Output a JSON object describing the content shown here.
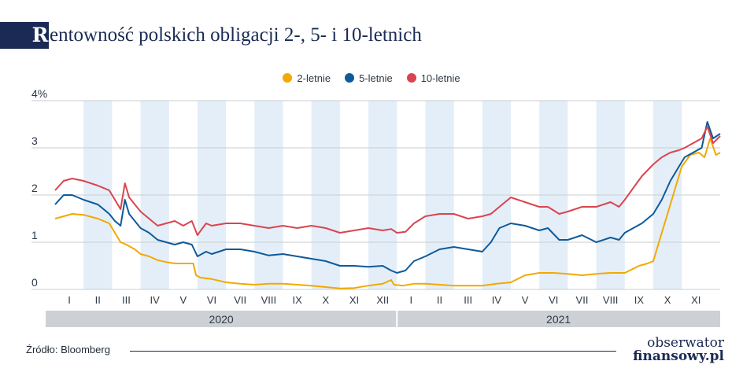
{
  "title": {
    "first_letter": "R",
    "rest": "entowność polskich obligacji 2-, 5- i 10-letnich"
  },
  "legend": [
    {
      "label": "2-letnie",
      "color": "#f2a900"
    },
    {
      "label": "5-letnie",
      "color": "#0e5a9a"
    },
    {
      "label": "10-letnie",
      "color": "#d9454f"
    }
  ],
  "footer": {
    "source": "Źródło: Bloomberg",
    "logo_top": "obserwator",
    "logo_bottom": "finansowy.pl"
  },
  "chart_data": {
    "type": "line",
    "title": "Rentowność polskich obligacji 2-, 5- i 10-letnich",
    "xlabel": "",
    "ylabel": "",
    "ylim": [
      0,
      4
    ],
    "y_ticks": [
      "0",
      "1",
      "2",
      "3",
      "4%"
    ],
    "grid": true,
    "legend_position": "top-center",
    "x_range": [
      0,
      23.35
    ],
    "x_unit": "months since start of 2020",
    "month_labels": [
      "I",
      "II",
      "III",
      "IV",
      "V",
      "VI",
      "VII",
      "VIII",
      "IX",
      "X",
      "XI",
      "XII",
      "I",
      "II",
      "III",
      "IV",
      "V",
      "VI",
      "VII",
      "VIII",
      "IX",
      "X",
      "XI"
    ],
    "years": [
      "2020",
      "2021"
    ],
    "series": [
      {
        "name": "2-letnie",
        "color": "#f2a900",
        "x": [
          0,
          0.3,
          0.6,
          1.0,
          1.5,
          1.9,
          2.05,
          2.15,
          2.3,
          2.5,
          2.8,
          3.0,
          3.3,
          3.6,
          3.9,
          4.2,
          4.5,
          4.85,
          4.95,
          5.1,
          5.5,
          6.0,
          6.5,
          7.0,
          7.5,
          8.0,
          8.5,
          9.0,
          9.5,
          10.0,
          10.5,
          11.0,
          11.5,
          11.8,
          11.9,
          12.2,
          12.6,
          13.0,
          13.5,
          14.0,
          14.5,
          15.0,
          15.5,
          16.0,
          16.5,
          17.0,
          17.5,
          18.0,
          18.5,
          19.0,
          19.5,
          20.0,
          20.5,
          20.8,
          21.0,
          21.2,
          21.5,
          21.8,
          22.0,
          22.3,
          22.6,
          22.8,
          23.0,
          23.2,
          23.35
        ],
        "y": [
          1.5,
          1.55,
          1.6,
          1.58,
          1.5,
          1.4,
          1.25,
          1.15,
          1.0,
          0.95,
          0.85,
          0.75,
          0.7,
          0.62,
          0.58,
          0.55,
          0.55,
          0.55,
          0.3,
          0.25,
          0.22,
          0.15,
          0.12,
          0.1,
          0.12,
          0.12,
          0.1,
          0.08,
          0.05,
          0.02,
          0.03,
          0.08,
          0.12,
          0.2,
          0.1,
          0.08,
          0.12,
          0.12,
          0.1,
          0.08,
          0.08,
          0.08,
          0.12,
          0.15,
          0.3,
          0.35,
          0.35,
          0.33,
          0.3,
          0.33,
          0.35,
          0.35,
          0.5,
          0.55,
          0.6,
          1.0,
          1.6,
          2.2,
          2.6,
          2.85,
          2.9,
          2.8,
          3.2,
          2.85,
          2.9
        ]
      },
      {
        "name": "5-letnie",
        "color": "#0e5a9a",
        "x": [
          0,
          0.3,
          0.6,
          1.0,
          1.5,
          1.9,
          2.1,
          2.3,
          2.45,
          2.6,
          2.8,
          3.0,
          3.3,
          3.6,
          3.9,
          4.2,
          4.5,
          4.8,
          5.0,
          5.3,
          5.5,
          6.0,
          6.5,
          7.0,
          7.5,
          8.0,
          8.5,
          9.0,
          9.5,
          10.0,
          10.5,
          11.0,
          11.5,
          11.8,
          12.0,
          12.3,
          12.6,
          13.0,
          13.5,
          14.0,
          14.5,
          15.0,
          15.3,
          15.6,
          16.0,
          16.5,
          17.0,
          17.3,
          17.7,
          18.0,
          18.5,
          19.0,
          19.5,
          19.8,
          20.0,
          20.3,
          20.6,
          21.0,
          21.3,
          21.6,
          21.9,
          22.1,
          22.4,
          22.7,
          22.9,
          23.1,
          23.35
        ],
        "y": [
          1.8,
          2.0,
          2.0,
          1.9,
          1.8,
          1.6,
          1.45,
          1.35,
          1.9,
          1.6,
          1.45,
          1.3,
          1.2,
          1.05,
          1.0,
          0.95,
          1.0,
          0.95,
          0.7,
          0.8,
          0.75,
          0.85,
          0.85,
          0.8,
          0.72,
          0.75,
          0.7,
          0.65,
          0.6,
          0.5,
          0.5,
          0.48,
          0.5,
          0.4,
          0.35,
          0.4,
          0.6,
          0.7,
          0.85,
          0.9,
          0.85,
          0.8,
          1.0,
          1.3,
          1.4,
          1.35,
          1.25,
          1.3,
          1.05,
          1.05,
          1.15,
          1.0,
          1.1,
          1.05,
          1.2,
          1.3,
          1.4,
          1.6,
          1.9,
          2.3,
          2.6,
          2.8,
          2.9,
          3.0,
          3.55,
          3.2,
          3.3
        ]
      },
      {
        "name": "10-letnie",
        "color": "#d9454f",
        "x": [
          0,
          0.3,
          0.6,
          1.0,
          1.5,
          1.9,
          2.1,
          2.3,
          2.45,
          2.6,
          2.8,
          3.0,
          3.3,
          3.6,
          3.9,
          4.2,
          4.5,
          4.8,
          5.0,
          5.3,
          5.5,
          6.0,
          6.5,
          7.0,
          7.5,
          8.0,
          8.5,
          9.0,
          9.5,
          10.0,
          10.5,
          11.0,
          11.5,
          11.8,
          12.0,
          12.3,
          12.6,
          13.0,
          13.5,
          14.0,
          14.5,
          15.0,
          15.3,
          15.6,
          16.0,
          16.5,
          17.0,
          17.3,
          17.7,
          18.0,
          18.5,
          19.0,
          19.5,
          19.8,
          20.0,
          20.3,
          20.6,
          21.0,
          21.3,
          21.6,
          21.9,
          22.1,
          22.4,
          22.7,
          22.9,
          23.1,
          23.35
        ],
        "y": [
          2.1,
          2.3,
          2.35,
          2.3,
          2.2,
          2.1,
          1.9,
          1.7,
          2.25,
          1.95,
          1.8,
          1.65,
          1.5,
          1.35,
          1.4,
          1.45,
          1.35,
          1.45,
          1.15,
          1.4,
          1.35,
          1.4,
          1.4,
          1.35,
          1.3,
          1.35,
          1.3,
          1.35,
          1.3,
          1.2,
          1.25,
          1.3,
          1.25,
          1.28,
          1.2,
          1.22,
          1.4,
          1.55,
          1.6,
          1.6,
          1.5,
          1.55,
          1.6,
          1.75,
          1.95,
          1.85,
          1.75,
          1.75,
          1.6,
          1.65,
          1.75,
          1.75,
          1.85,
          1.75,
          1.9,
          2.15,
          2.4,
          2.65,
          2.8,
          2.9,
          2.95,
          3.0,
          3.1,
          3.2,
          3.45,
          3.1,
          3.25
        ]
      }
    ]
  }
}
